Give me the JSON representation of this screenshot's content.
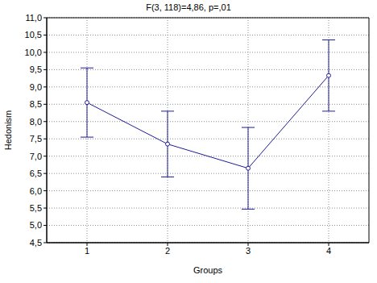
{
  "chart_data": {
    "type": "line",
    "title": "F(3, 118)=4,86, p=,01",
    "x_label": "Groups",
    "y_label": "Hedonism",
    "x": [
      1,
      2,
      3,
      4
    ],
    "values": [
      8.55,
      7.35,
      6.65,
      9.33
    ],
    "error": [
      1.0,
      0.95,
      1.18,
      1.03
    ],
    "color": "#1c1c9c",
    "marker": "circle",
    "grid": true,
    "xlim": [
      0.5,
      4.5
    ],
    "xticks": [
      1,
      2,
      3,
      4
    ],
    "ylim": [
      4.5,
      11
    ],
    "yticks": [
      {
        "value": 4.5,
        "label": "4,5"
      },
      {
        "value": 5,
        "label": "5,0"
      },
      {
        "value": 5.5,
        "label": "5,5"
      },
      {
        "value": 6,
        "label": "6,0"
      },
      {
        "value": 6.5,
        "label": "6,5"
      },
      {
        "value": 7,
        "label": "7,0"
      },
      {
        "value": 7.5,
        "label": "7,5"
      },
      {
        "value": 8,
        "label": "8,0"
      },
      {
        "value": 8.5,
        "label": "8,5"
      },
      {
        "value": 9,
        "label": "9,0"
      },
      {
        "value": 9.5,
        "label": "9,5"
      },
      {
        "value": 10,
        "label": "10,0"
      },
      {
        "value": 10.5,
        "label": "10,5"
      },
      {
        "value": 11,
        "label": "11,0"
      }
    ]
  }
}
